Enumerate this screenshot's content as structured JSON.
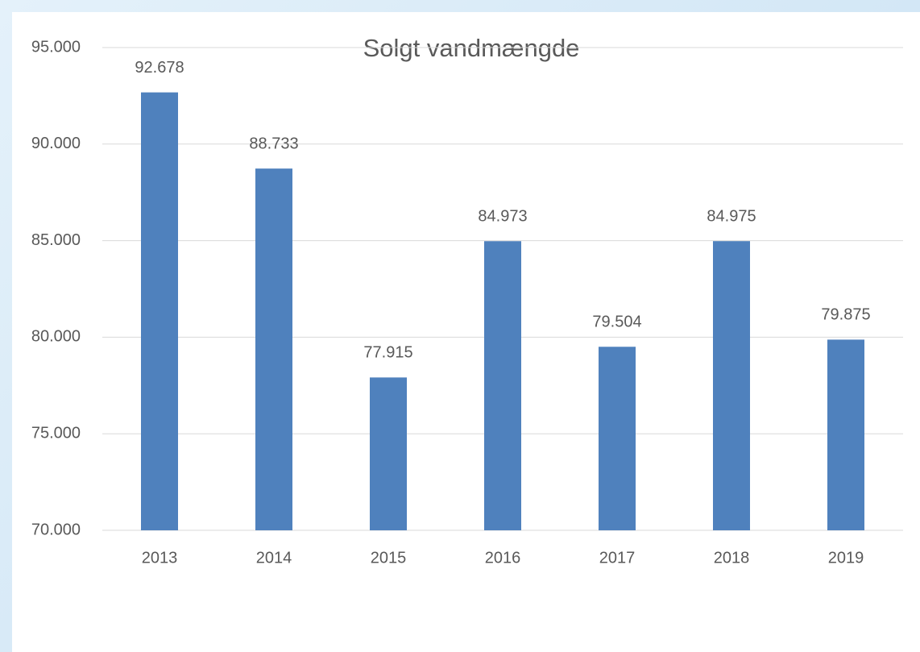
{
  "chart_data": {
    "type": "bar",
    "title": "Solgt vandmængde",
    "categories": [
      "2013",
      "2014",
      "2015",
      "2016",
      "2017",
      "2018",
      "2019"
    ],
    "values": [
      92678,
      88733,
      77915,
      84973,
      79504,
      84975,
      79875
    ],
    "value_labels": [
      "92.678",
      "88.733",
      "77.915",
      "84.973",
      "79.504",
      "84.975",
      "79.875"
    ],
    "color": "#4f81bd",
    "ylim": [
      70000,
      95000
    ],
    "yticks": [
      {
        "value": 70000,
        "label": "70.000"
      },
      {
        "value": 75000,
        "label": "75.000"
      },
      {
        "value": 80000,
        "label": "80.000"
      },
      {
        "value": 85000,
        "label": "85.000"
      },
      {
        "value": 90000,
        "label": "90.000"
      },
      {
        "value": 95000,
        "label": "95.000"
      }
    ],
    "grid": true
  }
}
